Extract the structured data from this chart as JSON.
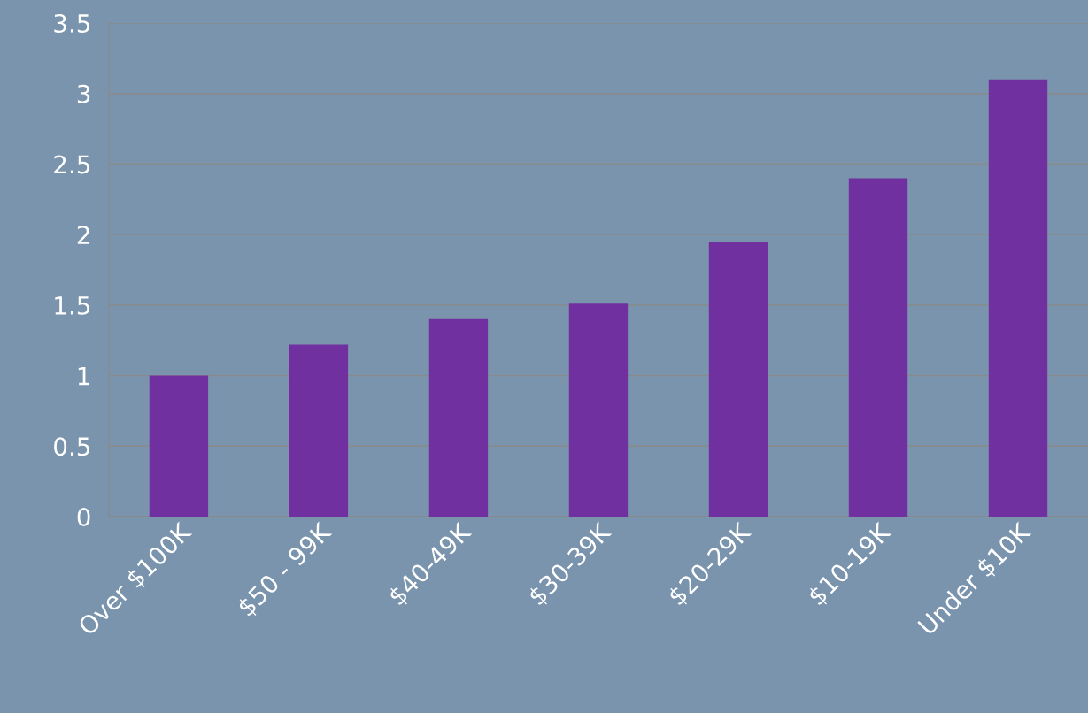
{
  "chart_data": {
    "type": "bar",
    "categories": [
      "Over $100K",
      "$50 - 99K",
      "$40-49K",
      "$30-39K",
      "$20-29K",
      "$10-19K",
      "Under $10K"
    ],
    "values": [
      1.0,
      1.22,
      1.4,
      1.51,
      1.95,
      2.4,
      3.1
    ],
    "color": "#7030a0",
    "ylim": [
      0,
      3.5
    ],
    "yticks": [
      0,
      0.5,
      1,
      1.5,
      2,
      2.5,
      3,
      3.5
    ],
    "grid": "y"
  }
}
